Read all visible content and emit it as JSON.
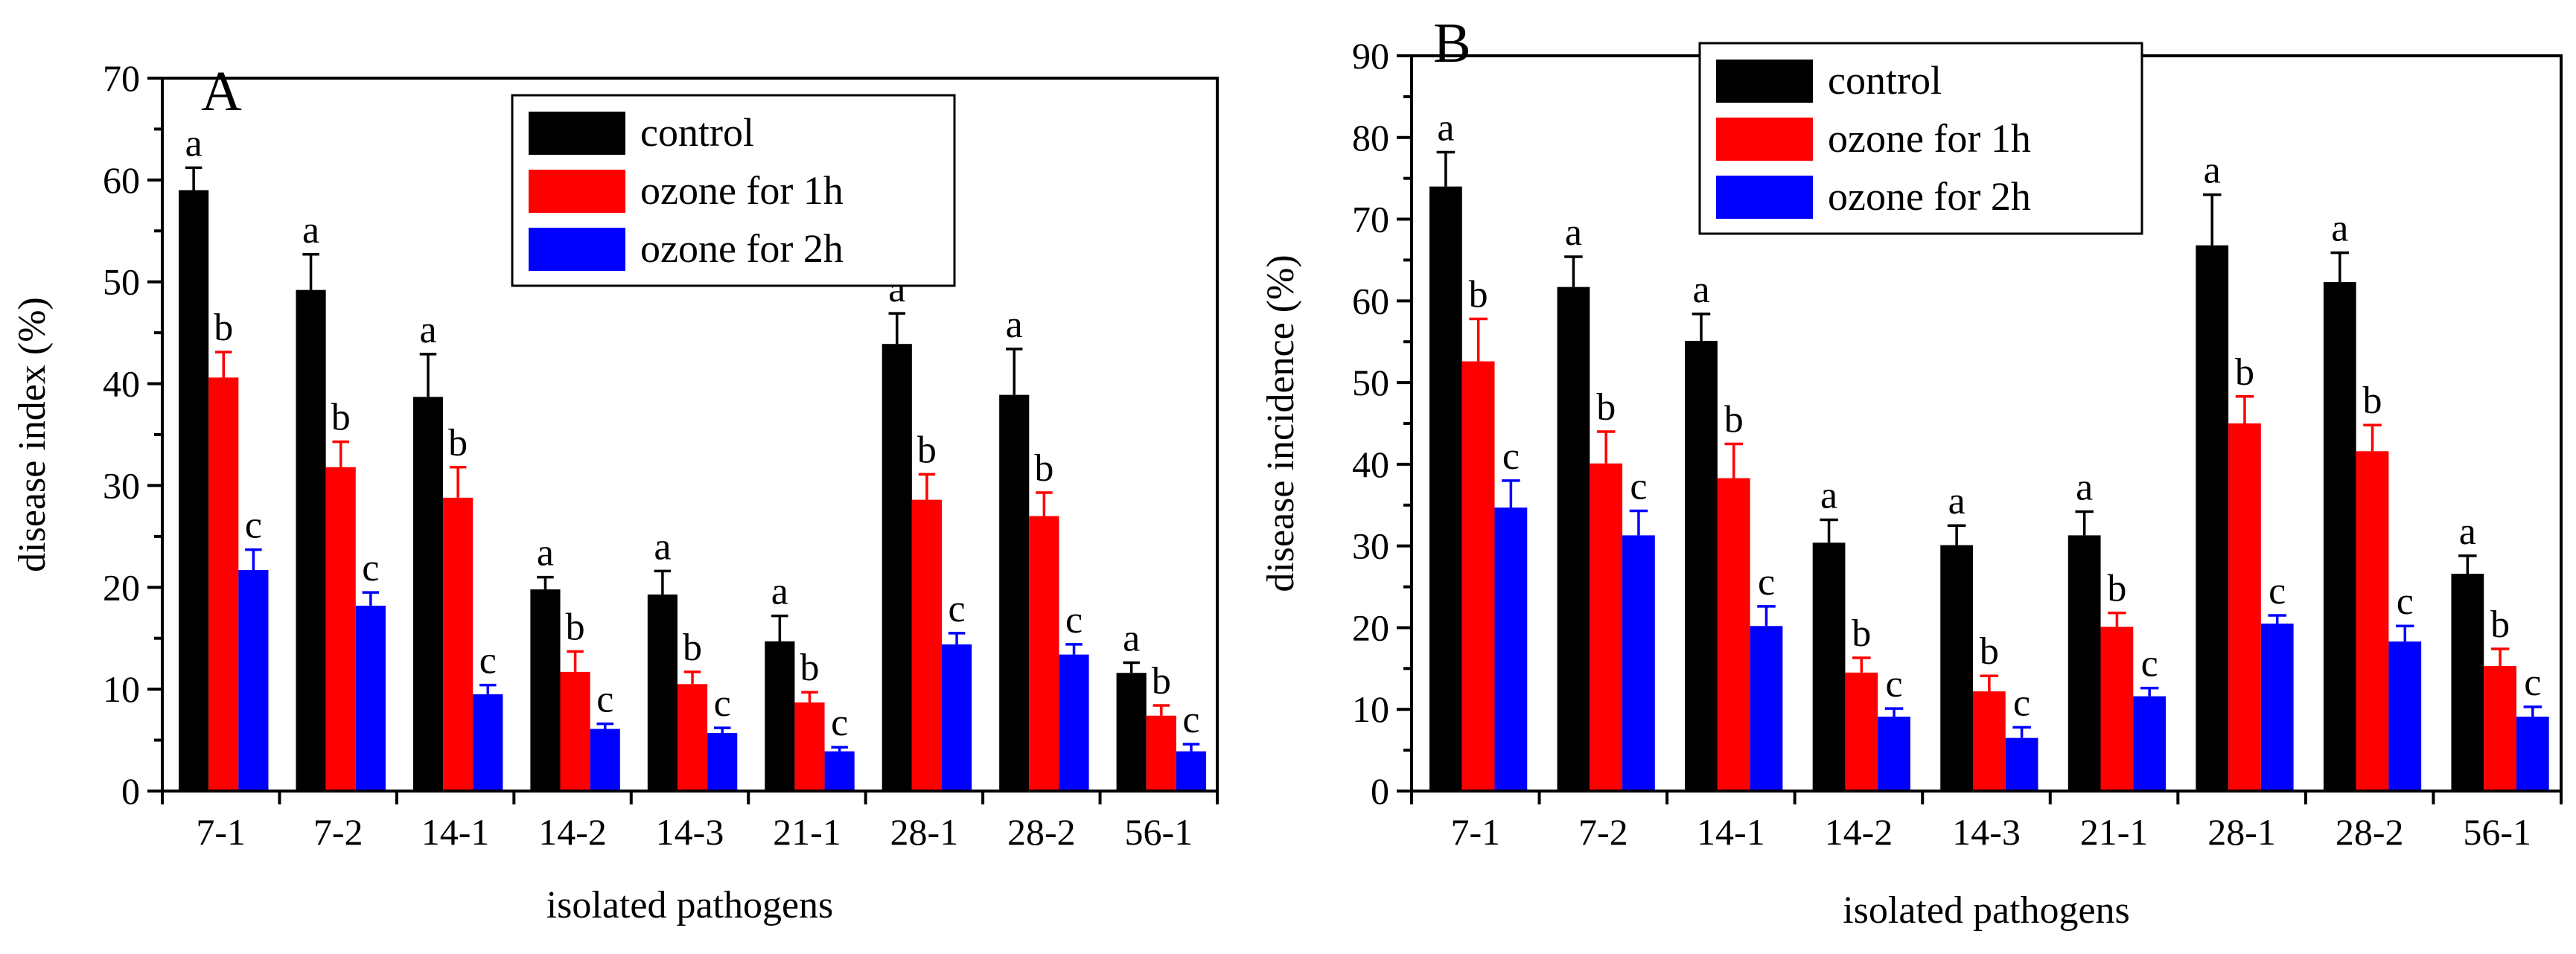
{
  "chart_data": [
    {
      "type": "bar",
      "panel_label": "A",
      "xlabel": "isolated pathogens",
      "ylabel": "disease index (%)",
      "ylim": [
        0,
        70
      ],
      "yticks": [
        0,
        10,
        20,
        30,
        40,
        50,
        60,
        70
      ],
      "legend_position": "top-center",
      "categories": [
        "7-1",
        "7-2",
        "14-1",
        "14-2",
        "14-3",
        "21-1",
        "28-1",
        "28-2",
        "56-1"
      ],
      "series": [
        {
          "name": "control",
          "color": "#000000",
          "values": [
            59.0,
            49.2,
            38.7,
            19.8,
            19.3,
            14.7,
            43.9,
            38.9,
            11.6
          ],
          "errors": [
            2.2,
            3.5,
            4.2,
            1.2,
            2.3,
            2.5,
            3.0,
            4.5,
            1.0
          ],
          "letters": [
            "a",
            "a",
            "a",
            "a",
            "a",
            "a",
            "a",
            "a",
            "a"
          ]
        },
        {
          "name": "ozone for 1h",
          "color": "#ff0000",
          "values": [
            40.6,
            31.8,
            28.8,
            11.7,
            10.5,
            8.7,
            28.6,
            27.0,
            7.4
          ],
          "errors": [
            2.5,
            2.5,
            3.0,
            2.0,
            1.2,
            1.0,
            2.5,
            2.3,
            1.0
          ],
          "letters": [
            "b",
            "b",
            "b",
            "b",
            "b",
            "b",
            "b",
            "b",
            "b"
          ]
        },
        {
          "name": "ozone for 2h",
          "color": "#0000ff",
          "values": [
            21.7,
            18.2,
            9.5,
            6.1,
            5.7,
            3.9,
            14.4,
            13.4,
            3.9
          ],
          "errors": [
            2.0,
            1.3,
            0.9,
            0.5,
            0.5,
            0.4,
            1.1,
            1.0,
            0.7
          ],
          "letters": [
            "c",
            "c",
            "c",
            "c",
            "c",
            "c",
            "c",
            "c",
            "c"
          ]
        }
      ]
    },
    {
      "type": "bar",
      "panel_label": "B",
      "xlabel": "isolated pathogens",
      "ylabel": "disease incidence (%)",
      "ylim": [
        0,
        90
      ],
      "yticks": [
        0,
        10,
        20,
        30,
        40,
        50,
        60,
        70,
        80,
        90
      ],
      "legend_position": "top-left",
      "categories": [
        "7-1",
        "7-2",
        "14-1",
        "14-2",
        "14-3",
        "21-1",
        "28-1",
        "28-2",
        "56-1"
      ],
      "series": [
        {
          "name": "control",
          "color": "#000000",
          "values": [
            74.0,
            61.7,
            55.1,
            30.4,
            30.1,
            31.3,
            66.8,
            62.3,
            26.6
          ],
          "errors": [
            4.2,
            3.7,
            3.3,
            2.8,
            2.4,
            2.9,
            6.2,
            3.6,
            2.2
          ],
          "letters": [
            "a",
            "a",
            "a",
            "a",
            "a",
            "a",
            "a",
            "a",
            "a"
          ]
        },
        {
          "name": "ozone for 1h",
          "color": "#ff0000",
          "values": [
            52.6,
            40.1,
            38.3,
            14.5,
            12.2,
            20.1,
            45.0,
            41.6,
            15.3
          ],
          "errors": [
            5.2,
            3.9,
            4.2,
            1.8,
            1.9,
            1.7,
            3.3,
            3.2,
            2.1
          ],
          "letters": [
            "b",
            "b",
            "b",
            "b",
            "b",
            "b",
            "b",
            "b",
            "b"
          ]
        },
        {
          "name": "ozone for 2h",
          "color": "#0000ff",
          "values": [
            34.7,
            31.3,
            20.2,
            9.1,
            6.5,
            11.6,
            20.5,
            18.3,
            9.1
          ],
          "errors": [
            3.3,
            3.0,
            2.4,
            1.0,
            1.3,
            1.0,
            1.0,
            1.9,
            1.2
          ],
          "letters": [
            "c",
            "c",
            "c",
            "c",
            "c",
            "c",
            "c",
            "c",
            "c"
          ]
        }
      ]
    }
  ]
}
